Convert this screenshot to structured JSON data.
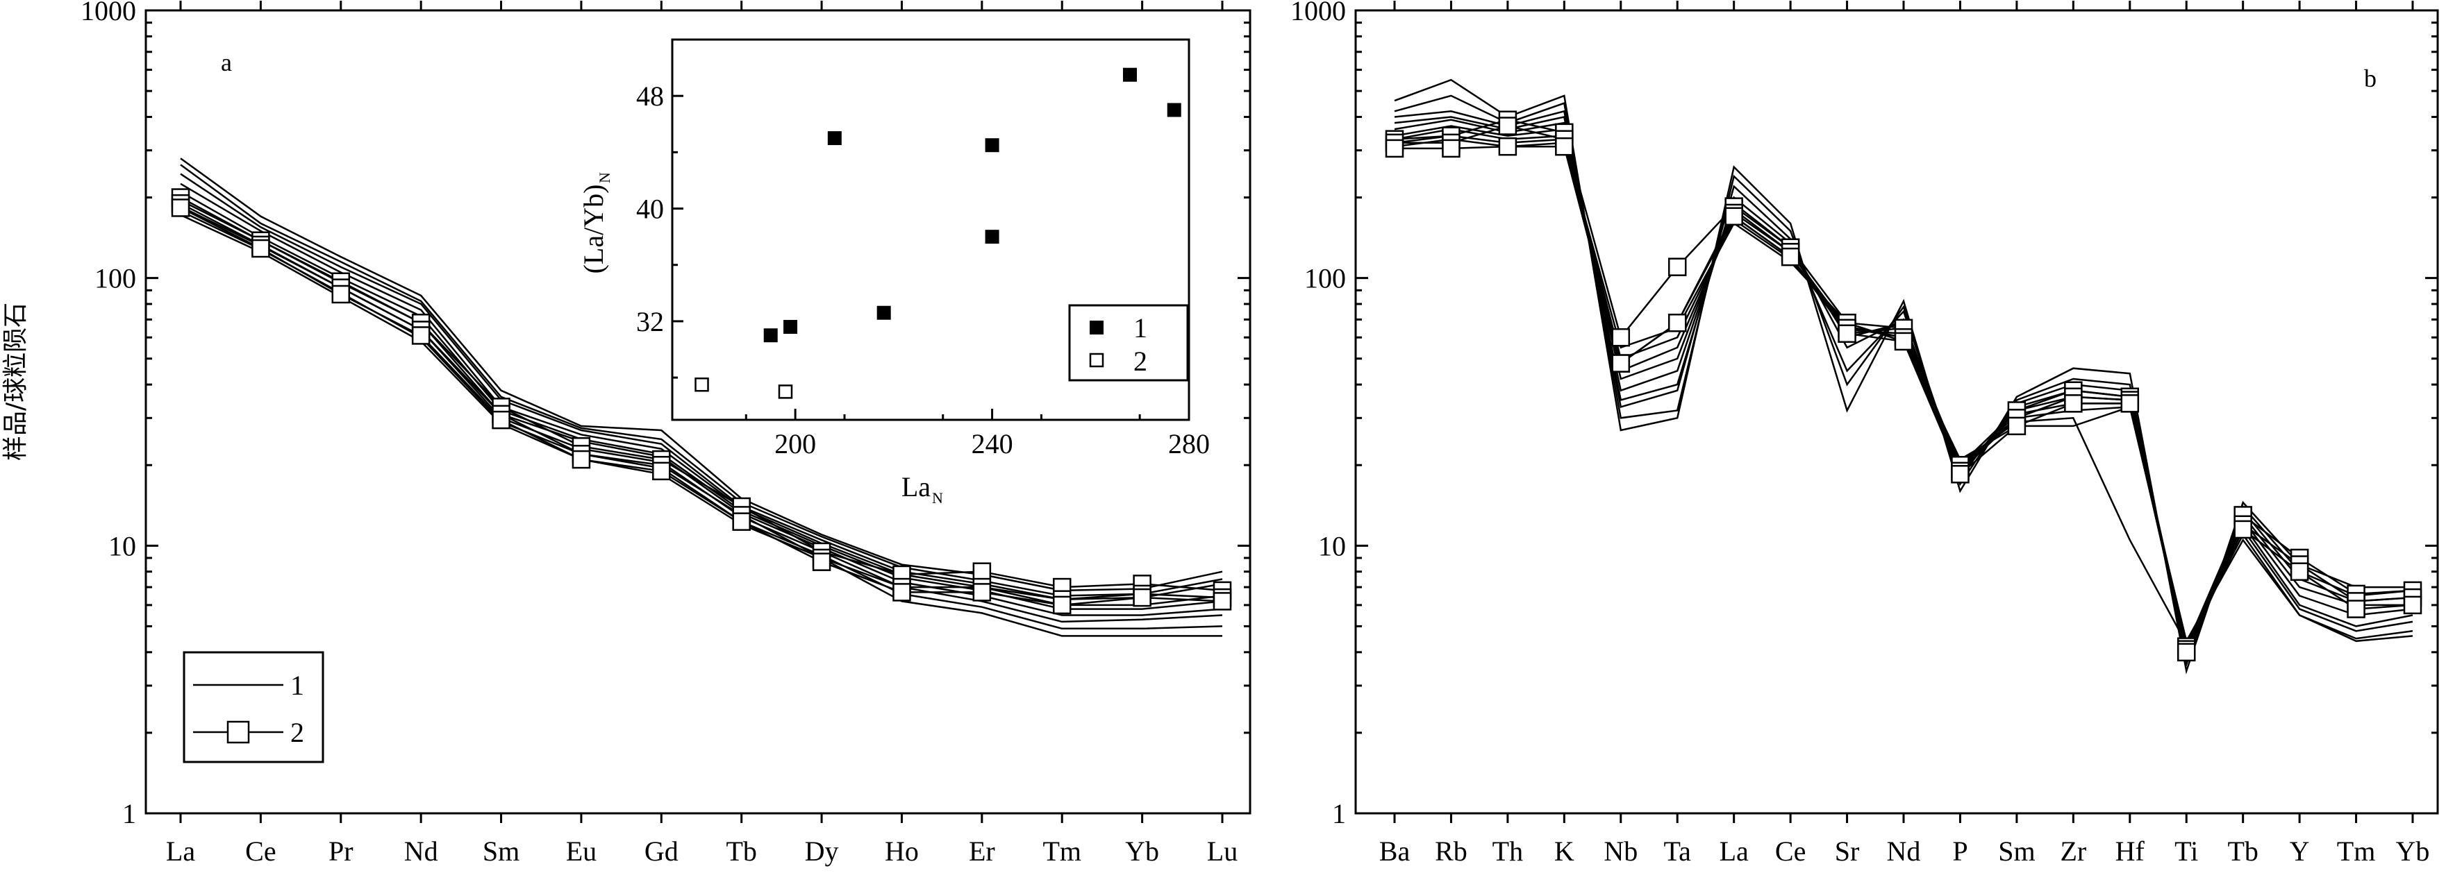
{
  "y_axis_label": "样品/球粒陨石",
  "chart_data": [
    {
      "panel": "a",
      "type": "line",
      "yscale": "log",
      "ylim": [
        1,
        1000
      ],
      "yticks": [
        1,
        10,
        100,
        1000
      ],
      "ytick_labels": [
        "1",
        "10",
        "100",
        "1000"
      ],
      "categories": [
        "La",
        "Ce",
        "Pr",
        "Nd",
        "Sm",
        "Eu",
        "Gd",
        "Tb",
        "Dy",
        "Ho",
        "Er",
        "Tm",
        "Yb",
        "Lu"
      ],
      "legend": [
        {
          "label": "1",
          "style": "line"
        },
        {
          "label": "2",
          "style": "line-square"
        }
      ],
      "series_group1": [
        [
          280,
          170,
          120,
          86,
          38,
          28,
          27,
          15,
          11,
          8.5,
          7.8,
          6.8,
          6.9,
          8.0
        ],
        [
          265,
          160,
          115,
          82,
          36,
          27.5,
          25,
          14.5,
          10.8,
          8.3,
          7.4,
          6.5,
          6.6,
          7.5
        ],
        [
          245,
          155,
          110,
          80,
          35,
          27,
          24,
          14,
          10.5,
          8.0,
          7.2,
          6.3,
          6.4,
          7.2
        ],
        [
          225,
          150,
          105,
          76,
          33,
          26,
          23,
          13.8,
          10.2,
          7.8,
          7.0,
          6.0,
          6.0,
          6.5
        ],
        [
          210,
          142,
          100,
          72,
          32,
          25,
          22,
          13.5,
          10,
          7.6,
          6.8,
          5.8,
          5.8,
          6.2
        ],
        [
          195,
          138,
          96,
          68,
          31,
          24.5,
          21.5,
          13.2,
          9.8,
          7.3,
          6.5,
          5.5,
          5.5,
          5.8
        ],
        [
          185,
          132,
          92,
          64,
          30,
          23,
          20.5,
          12.8,
          9.5,
          7.0,
          6.2,
          5.2,
          5.3,
          5.5
        ],
        [
          178,
          128,
          88,
          60,
          29,
          22,
          19.5,
          12.3,
          9.2,
          6.6,
          5.9,
          4.9,
          4.9,
          5.0
        ],
        [
          172,
          125,
          85,
          58,
          28.5,
          21,
          18.5,
          12,
          9.0,
          6.2,
          5.6,
          4.6,
          4.6,
          4.6
        ]
      ],
      "series_group2": [
        [
          200,
          138,
          97,
          68,
          33,
          23.5,
          21,
          14,
          9.5,
          7.8,
          8.0,
          7.0,
          7.2,
          6.8
        ],
        [
          190,
          133,
          92,
          64,
          31,
          22,
          20,
          13,
          9.0,
          7.0,
          7.0,
          6.3,
          6.6,
          6.4
        ],
        [
          183,
          129,
          87,
          61,
          29.5,
          21,
          19,
          12.3,
          8.7,
          6.7,
          6.7,
          6.0,
          6.4,
          6.2
        ]
      ],
      "inset": {
        "type": "scatter",
        "xlabel": "La",
        "xlabel_subscript": "N",
        "ylabel": "(La/Yb)",
        "ylabel_subscript": "N",
        "xlim": [
          175,
          280
        ],
        "ylim": [
          25,
          52
        ],
        "xticks": [
          200,
          240,
          280
        ],
        "yticks": [
          32,
          40,
          48
        ],
        "legend": [
          {
            "label": "1",
            "marker": "filled-square"
          },
          {
            "label": "2",
            "marker": "open-square"
          }
        ],
        "series": [
          {
            "name": "1",
            "marker": "filled-square",
            "points": [
              [
                195,
                31
              ],
              [
                199,
                31.6
              ],
              [
                208,
                45
              ],
              [
                218,
                32.6
              ],
              [
                240,
                44.5
              ],
              [
                240,
                38
              ],
              [
                268,
                49.5
              ],
              [
                277,
                47
              ]
            ]
          },
          {
            "name": "2",
            "marker": "open-square",
            "points": [
              [
                181,
                27.5
              ],
              [
                198,
                27
              ]
            ]
          }
        ]
      }
    },
    {
      "panel": "b",
      "type": "line",
      "yscale": "log",
      "ylim": [
        1,
        1000
      ],
      "yticks": [
        1,
        10,
        100,
        1000
      ],
      "ytick_labels": [
        "1",
        "10",
        "100",
        "1000"
      ],
      "categories": [
        "Ba",
        "Rb",
        "Th",
        "K",
        "Nb",
        "Ta",
        "La",
        "Ce",
        "Sr",
        "Nd",
        "P",
        "Sm",
        "Zr",
        "Hf",
        "Ti",
        "Tb",
        "Y",
        "Tm",
        "Yb"
      ],
      "series_group1": [
        [
          460,
          550,
          400,
          480,
          27,
          30,
          260,
          160,
          32,
          82,
          16,
          36,
          46,
          44,
          3.4,
          14.5,
          8.5,
          7.0,
          7.0
        ],
        [
          420,
          480,
          380,
          450,
          30,
          32,
          240,
          150,
          40,
          78,
          17,
          35,
          42,
          40,
          3.6,
          14,
          8.0,
          6.5,
          6.8
        ],
        [
          400,
          420,
          370,
          420,
          33,
          38,
          220,
          140,
          45,
          75,
          18,
          34,
          40,
          38,
          3.8,
          13.5,
          7.5,
          6.2,
          6.4
        ],
        [
          380,
          400,
          360,
          400,
          35,
          40,
          200,
          135,
          55,
          70,
          18.5,
          33,
          38,
          36,
          4.0,
          13,
          7.0,
          6.0,
          6.0
        ],
        [
          360,
          390,
          350,
          380,
          38,
          45,
          190,
          130,
          60,
          68,
          19,
          32,
          36,
          35,
          4.0,
          12.5,
          6.5,
          5.5,
          5.8
        ],
        [
          340,
          370,
          340,
          360,
          42,
          50,
          180,
          125,
          62,
          65,
          19.5,
          31,
          34,
          34,
          4.2,
          12,
          6.0,
          5.0,
          5.5
        ],
        [
          330,
          360,
          330,
          340,
          45,
          55,
          170,
          120,
          64,
          62,
          20,
          30,
          32,
          33,
          4.2,
          11.5,
          5.8,
          4.8,
          5.2
        ],
        [
          320,
          340,
          320,
          330,
          50,
          60,
          165,
          118,
          66,
          60,
          20.5,
          29,
          30,
          10.5,
          4.3,
          11,
          5.5,
          4.5,
          4.8
        ],
        [
          310,
          330,
          310,
          320,
          55,
          65,
          160,
          115,
          68,
          58,
          21,
          28,
          28,
          33,
          4.4,
          10.5,
          5.5,
          4.4,
          4.6
        ]
      ],
      "series_group2": [
        [
          330,
          340,
          390,
          350,
          60,
          110,
          185,
          130,
          68,
          65,
          20,
          32,
          38,
          36,
          4.2,
          13,
          9,
          6.6,
          6.8
        ],
        [
          320,
          320,
          370,
          330,
          48,
          68,
          175,
          125,
          65,
          60,
          19,
          30,
          36,
          35,
          4.1,
          12,
          8.5,
          6.2,
          6.4
        ],
        [
          305,
          305,
          310,
          310,
          48,
          68,
          170,
          120,
          62,
          58,
          18.5,
          28,
          34,
          34,
          4.0,
          11.5,
          8,
          5.8,
          6.0
        ]
      ]
    }
  ]
}
